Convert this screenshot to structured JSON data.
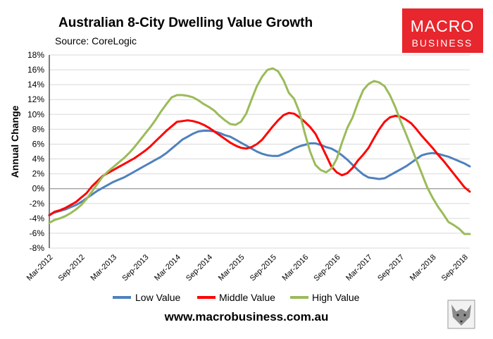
{
  "colors": {
    "low": "#4f81bd",
    "middle": "#ff0000",
    "high": "#9bbb59",
    "grid": "#d9d9d9",
    "axis": "#000000",
    "logo_bg": "#e8262d",
    "logo_text": "#ffffff"
  },
  "logo": {
    "line1": "MACRO",
    "line2": "BUSINESS"
  },
  "footer": {
    "url": "www.macrobusiness.com.au"
  },
  "wolf_logo_icon": "wolf-icon",
  "chart_data": {
    "type": "line",
    "title": "Australian 8-City Dwelling Value Growth",
    "subtitle": "Source: CoreLogic",
    "xlabel": "",
    "ylabel": "Annual Change",
    "ylim": [
      -8,
      18
    ],
    "yticks": [
      -8,
      -6,
      -4,
      -2,
      0,
      2,
      4,
      6,
      8,
      10,
      12,
      14,
      16,
      18
    ],
    "ytick_labels": [
      "-8%",
      "-6%",
      "-4%",
      "-2%",
      "0%",
      "2%",
      "4%",
      "6%",
      "8%",
      "10%",
      "12%",
      "14%",
      "16%",
      "18%"
    ],
    "grid": true,
    "legend": "bottom",
    "xtick_labels": [
      "Mar-2012",
      "Sep-2012",
      "Mar-2013",
      "Sep-2013",
      "Mar-2014",
      "Sep-2014",
      "Mar-2015",
      "Sep-2015",
      "Mar-2016",
      "Sep-2016",
      "Mar-2017",
      "Sep-2017",
      "Mar-2018",
      "Sep-2018"
    ],
    "x_start": "Mar-2012",
    "x_end": "Oct-2018",
    "x_count": 80,
    "series": [
      {
        "name": "Low Value",
        "key": "low",
        "values": [
          -3.5,
          -3.2,
          -3.0,
          -2.8,
          -2.5,
          -2.2,
          -1.8,
          -1.3,
          -0.8,
          -0.3,
          0.1,
          0.5,
          0.9,
          1.2,
          1.5,
          1.9,
          2.3,
          2.7,
          3.1,
          3.5,
          3.9,
          4.3,
          4.8,
          5.4,
          6.0,
          6.6,
          7.0,
          7.4,
          7.7,
          7.8,
          7.8,
          7.7,
          7.5,
          7.2,
          7.0,
          6.6,
          6.2,
          5.8,
          5.4,
          5.0,
          4.7,
          4.5,
          4.4,
          4.4,
          4.7,
          5.0,
          5.4,
          5.7,
          5.9,
          6.1,
          6.1,
          5.9,
          5.6,
          5.4,
          5.0,
          4.5,
          3.9,
          3.2,
          2.5,
          1.9,
          1.5,
          1.4,
          1.3,
          1.4,
          1.8,
          2.2,
          2.6,
          3.0,
          3.5,
          4.0,
          4.5,
          4.7,
          4.8,
          4.7,
          4.5,
          4.3,
          4.0,
          3.7,
          3.4,
          3.0
        ]
      },
      {
        "name": "Middle Value",
        "key": "middle",
        "values": [
          -3.6,
          -3.1,
          -2.9,
          -2.6,
          -2.2,
          -1.8,
          -1.2,
          -0.6,
          0.3,
          1.0,
          1.7,
          2.1,
          2.5,
          2.9,
          3.3,
          3.7,
          4.1,
          4.6,
          5.1,
          5.7,
          6.4,
          7.1,
          7.8,
          8.4,
          9.0,
          9.1,
          9.2,
          9.1,
          8.9,
          8.6,
          8.2,
          7.7,
          7.2,
          6.7,
          6.2,
          5.8,
          5.5,
          5.4,
          5.6,
          6.0,
          6.6,
          7.5,
          8.4,
          9.2,
          9.9,
          10.2,
          10.1,
          9.6,
          9.0,
          8.3,
          7.4,
          6.0,
          4.5,
          3.0,
          2.2,
          1.8,
          2.1,
          2.8,
          3.8,
          4.6,
          5.5,
          6.8,
          8.0,
          9.0,
          9.6,
          9.8,
          9.7,
          9.3,
          8.8,
          8.0,
          7.1,
          6.3,
          5.5,
          4.6,
          3.8,
          2.9,
          2.0,
          1.1,
          0.2,
          -0.4
        ]
      },
      {
        "name": "High Value",
        "key": "high",
        "values": [
          -4.6,
          -4.2,
          -4.0,
          -3.7,
          -3.3,
          -2.8,
          -2.2,
          -1.4,
          -0.4,
          0.6,
          1.6,
          2.3,
          2.9,
          3.5,
          4.1,
          4.8,
          5.6,
          6.5,
          7.4,
          8.3,
          9.3,
          10.4,
          11.4,
          12.3,
          12.6,
          12.6,
          12.5,
          12.3,
          11.9,
          11.4,
          11.0,
          10.5,
          9.8,
          9.2,
          8.7,
          8.6,
          9.0,
          10.1,
          12.0,
          13.8,
          15.1,
          16.0,
          16.2,
          15.8,
          14.6,
          12.9,
          12.1,
          10.3,
          7.5,
          5.0,
          3.2,
          2.5,
          2.2,
          2.7,
          4.0,
          6.2,
          8.2,
          9.6,
          11.6,
          13.3,
          14.1,
          14.5,
          14.3,
          13.8,
          12.6,
          11.0,
          9.1,
          7.4,
          5.6,
          3.8,
          2.0,
          0.2,
          -1.2,
          -2.4,
          -3.4,
          -4.5,
          -4.9,
          -5.4,
          -6.1,
          -6.1
        ]
      }
    ]
  }
}
